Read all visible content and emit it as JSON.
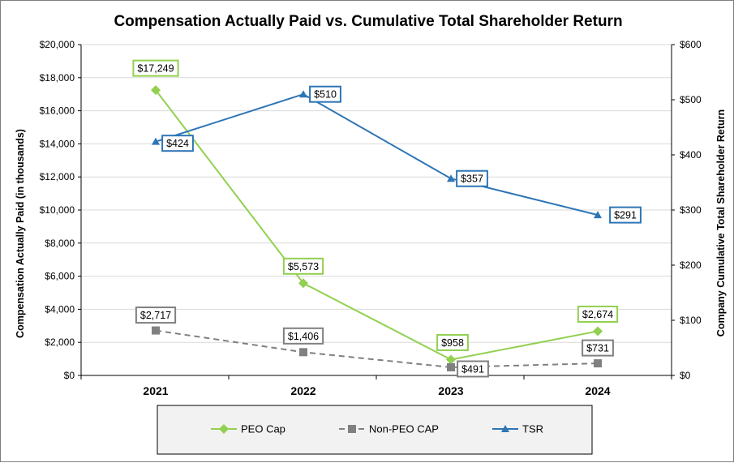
{
  "chart_data": {
    "type": "line",
    "title": "Compensation Actually Paid vs. Cumulative Total Shareholder Return",
    "xlabel": "",
    "ylabel": "Compensation Actually Paid (in thousands)",
    "y2label": "Company Cumulative Total Shareholder Return",
    "categories": [
      "2021",
      "2022",
      "2023",
      "2024"
    ],
    "ylim": [
      0,
      20000
    ],
    "y2lim": [
      0,
      600
    ],
    "yticks": [
      "$0",
      "$2,000",
      "$4,000",
      "$6,000",
      "$8,000",
      "$10,000",
      "$12,000",
      "$14,000",
      "$16,000",
      "$18,000",
      "$20,000"
    ],
    "y2ticks": [
      "$0",
      "$100",
      "$200",
      "$300",
      "$400",
      "$500",
      "$600"
    ],
    "legend_position": "bottom",
    "series": [
      {
        "name": "PEO Cap",
        "axis": "left",
        "color": "#92d050",
        "marker": "diamond",
        "dash": "solid",
        "values": [
          17249,
          5573,
          958,
          2674
        ],
        "labels": [
          "$17,249",
          "$5,573",
          "$958",
          "$2,674"
        ]
      },
      {
        "name": "Non-PEO CAP",
        "axis": "left",
        "color": "#808080",
        "marker": "square",
        "dash": "dashed",
        "values": [
          2717,
          1406,
          491,
          731
        ],
        "labels": [
          "$2,717",
          "$1,406",
          "$491",
          "$731"
        ]
      },
      {
        "name": "TSR",
        "axis": "right",
        "color": "#2e75b6",
        "marker": "triangle",
        "dash": "solid",
        "values": [
          424,
          510,
          357,
          291
        ],
        "labels": [
          "$424",
          "$510",
          "$357",
          "$291"
        ]
      }
    ]
  }
}
